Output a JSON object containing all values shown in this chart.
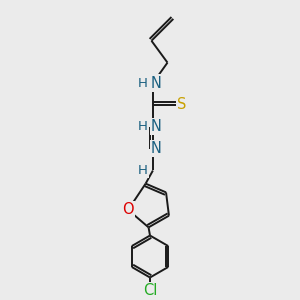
{
  "bg_color": "#ebebeb",
  "bond_color": "#1a1a1a",
  "bond_width": 1.4,
  "atom_colors": {
    "N": "#1a6080",
    "S": "#c8a000",
    "O": "#dd0000",
    "Cl": "#22aa22",
    "H": "#1a6080",
    "C": "#1a1a1a"
  },
  "font_size": 9.5,
  "fig_size": [
    3.0,
    3.0
  ],
  "dpi": 100,
  "xlim": [
    0,
    10
  ],
  "ylim": [
    0,
    10
  ]
}
